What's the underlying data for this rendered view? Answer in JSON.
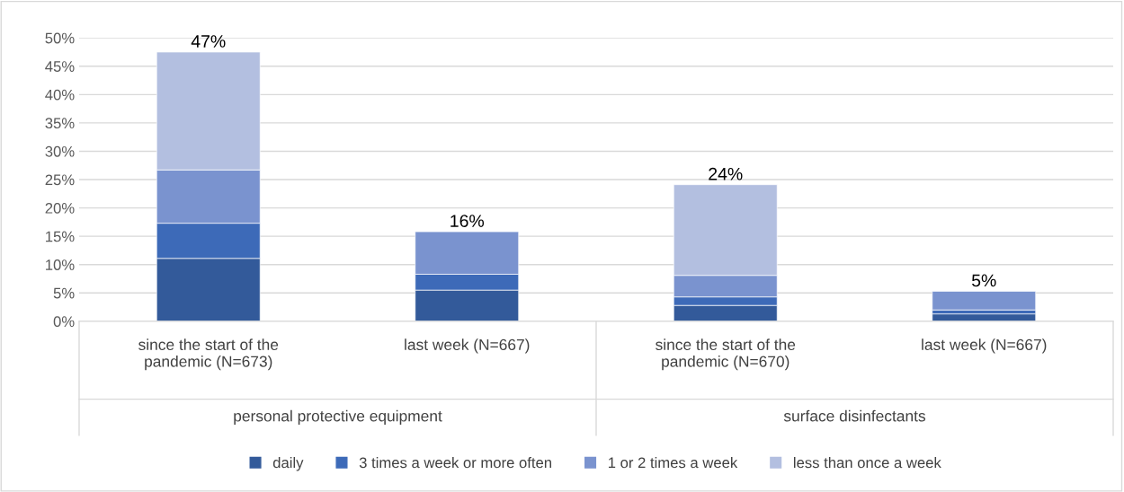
{
  "chart_data": {
    "type": "bar",
    "stacked": true,
    "categories": [
      "since the start of the\npandemic (N=673)",
      "last week (N=667)",
      "since the start of the\npandemic (N=670)",
      "last week (N=667)"
    ],
    "series": [
      {
        "name": "daily",
        "color": "#335a9a",
        "values": [
          11.1,
          5.5,
          2.8,
          1.3
        ]
      },
      {
        "name": "3 times a week or more often",
        "color": "#3d6ab8",
        "values": [
          6.2,
          2.8,
          1.5,
          0.7
        ]
      },
      {
        "name": "1 or 2 times a week",
        "color": "#7a93cf",
        "values": [
          9.4,
          7.5,
          3.8,
          3.3
        ]
      },
      {
        "name": "less than once a week",
        "color": "#b3bfe0",
        "values": [
          20.8,
          null,
          16.0,
          null
        ]
      }
    ],
    "totals": [
      "47%",
      "16%",
      "24%",
      "5%"
    ],
    "annotations": [
      "personal protective equipment",
      "surface disinfectants"
    ],
    "ylim": [
      0,
      50
    ],
    "yticks": [
      {
        "value": 0,
        "label": "0%"
      },
      {
        "value": 5,
        "label": "5%"
      },
      {
        "value": 10,
        "label": "10%"
      },
      {
        "value": 15,
        "label": "15%"
      },
      {
        "value": 20,
        "label": "20%"
      },
      {
        "value": 25,
        "label": "25%"
      },
      {
        "value": 30,
        "label": "30%"
      },
      {
        "value": 35,
        "label": "35%"
      },
      {
        "value": 40,
        "label": "40%"
      },
      {
        "value": 45,
        "label": "45%"
      },
      {
        "value": 50,
        "label": "50%"
      }
    ],
    "grid": "y",
    "legend": "bottom"
  }
}
